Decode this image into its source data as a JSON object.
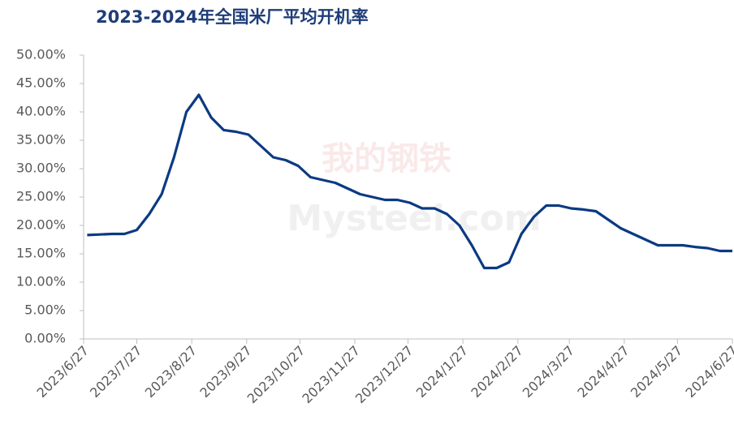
{
  "chart_data": {
    "type": "line",
    "title": "2023-2024年全国米厂平均开机率",
    "watermark": [
      "我的钢铁",
      "Mysteel.com"
    ],
    "x": [
      "2023/6/29",
      "2023/7/6",
      "2023/7/13",
      "2023/7/20",
      "2023/7/27",
      "2023/8/3",
      "2023/8/10",
      "2023/8/17",
      "2023/8/24",
      "2023/8/31",
      "2023/9/7",
      "2023/9/14",
      "2023/9/21",
      "2023/9/28",
      "2023/10/5",
      "2023/10/12",
      "2023/10/19",
      "2023/10/26",
      "2023/11/2",
      "2023/11/9",
      "2023/11/16",
      "2023/11/23",
      "2023/11/30",
      "2023/12/7",
      "2023/12/14",
      "2023/12/21",
      "2023/12/28",
      "2024/1/4",
      "2024/1/11",
      "2024/1/18",
      "2024/1/25",
      "2024/2/1",
      "2024/2/8",
      "2024/2/15",
      "2024/2/22",
      "2024/2/29",
      "2024/3/7",
      "2024/3/14",
      "2024/3/21",
      "2024/3/28",
      "2024/4/4",
      "2024/4/11",
      "2024/4/18",
      "2024/4/25",
      "2024/5/2",
      "2024/5/9",
      "2024/5/16",
      "2024/5/23",
      "2024/5/30",
      "2024/6/6",
      "2024/6/13",
      "2024/6/20",
      "2024/6/27"
    ],
    "series": [
      {
        "color": "#0b3a82",
        "values": [
          18.3,
          18.4,
          18.5,
          18.5,
          19.2,
          22,
          25.5,
          32,
          40,
          43,
          39,
          36.8,
          36.5,
          36,
          34,
          32,
          31.5,
          30.5,
          28.5,
          28,
          27.5,
          26.5,
          25.5,
          25,
          24.5,
          24.5,
          24,
          23,
          23,
          22,
          20,
          16.5,
          12.5,
          12.5,
          13.5,
          18.5,
          21.5,
          23.5,
          23.5,
          23,
          22.8,
          22.5,
          21,
          19.5,
          18.5,
          17.5,
          16.5,
          16.5,
          16.5,
          16.2,
          16,
          15.5,
          15.5
        ]
      }
    ],
    "xlim": [
      "2023/6/27",
      "2024/6/27"
    ],
    "xticks": [
      "2023/6/27",
      "2023/7/27",
      "2023/8/27",
      "2023/9/27",
      "2023/10/27",
      "2023/11/27",
      "2023/12/27",
      "2024/1/27",
      "2024/2/27",
      "2024/3/27",
      "2024/4/27",
      "2024/5/27",
      "2024/6/27"
    ],
    "ylim": [
      0,
      50
    ],
    "yticks": [
      {
        "value": 0,
        "label": "0.00%"
      },
      {
        "value": 5,
        "label": "5.00%"
      },
      {
        "value": 10,
        "label": "10.00%"
      },
      {
        "value": 15,
        "label": "15.00%"
      },
      {
        "value": 20,
        "label": "20.00%"
      },
      {
        "value": 25,
        "label": "25.00%"
      },
      {
        "value": 30,
        "label": "30.00%"
      },
      {
        "value": 35,
        "label": "35.00%"
      },
      {
        "value": 40,
        "label": "40.00%"
      },
      {
        "value": 45,
        "label": "45.00%"
      },
      {
        "value": 50,
        "label": "50.00%"
      }
    ],
    "grid": false
  }
}
